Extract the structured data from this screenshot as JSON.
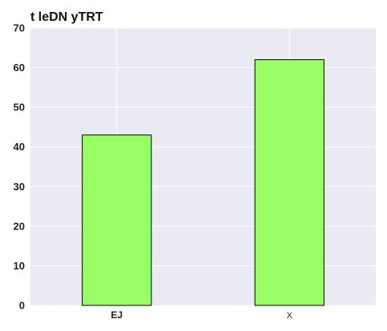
{
  "chart_data": {
    "type": "bar",
    "title": "t leDN yTRT",
    "categories": [
      "EJ",
      "X"
    ],
    "values": [
      43,
      62
    ],
    "xlabel": "",
    "ylabel": "",
    "ylim": [
      0,
      70
    ],
    "yticks": [
      0,
      10,
      20,
      30,
      40,
      50,
      60,
      70
    ],
    "grid": true,
    "legend": "none",
    "colors": {
      "bar_fill": "#99ff66",
      "bar_stroke": "#000000",
      "plot_background": "#eaeaf2",
      "grid": "#ffffff"
    }
  }
}
